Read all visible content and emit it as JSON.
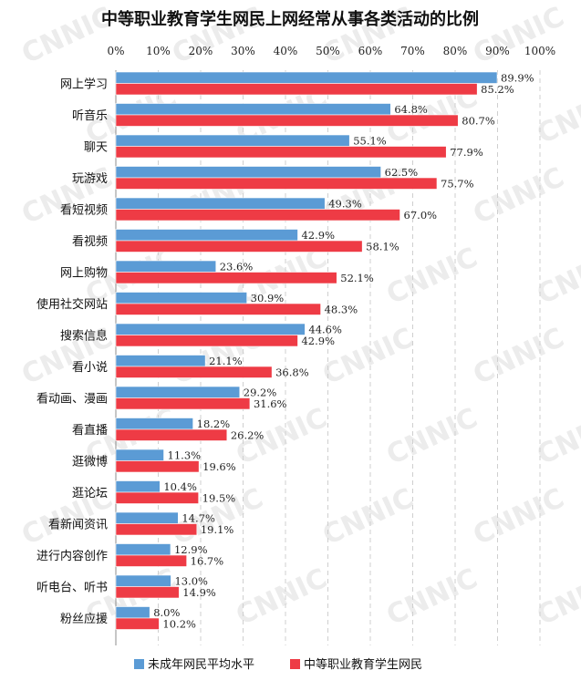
{
  "chart_data": {
    "type": "bar",
    "orientation": "horizontal",
    "title": "中等职业教育学生网民上网经常从事各类活动的比例",
    "xlim": [
      0,
      100
    ],
    "ticks": [
      "0%",
      "10%",
      "20%",
      "30%",
      "40%",
      "50%",
      "60%",
      "70%",
      "80%",
      "90%",
      "100%"
    ],
    "grid": true,
    "legend_position": "bottom",
    "watermark": "CNNIC",
    "categories": [
      "网上学习",
      "听音乐",
      "聊天",
      "玩游戏",
      "看短视频",
      "看视频",
      "网上购物",
      "使用社交网站",
      "搜索信息",
      "看小说",
      "看动画、漫画",
      "看直播",
      "逛微博",
      "逛论坛",
      "看新闻资讯",
      "进行内容创作",
      "听电台、听书",
      "粉丝应援"
    ],
    "series": [
      {
        "name": "未成年网民平均水平",
        "color": "#5b9bd5",
        "values": [
          89.9,
          64.8,
          55.1,
          62.5,
          49.3,
          42.9,
          23.6,
          30.9,
          44.6,
          21.1,
          29.2,
          18.2,
          11.3,
          10.4,
          14.7,
          12.9,
          13.0,
          8.0
        ],
        "labels": [
          "89.9%",
          "64.8%",
          "55.1%",
          "62.5%",
          "49.3%",
          "42.9%",
          "23.6%",
          "30.9%",
          "44.6%",
          "21.1%",
          "29.2%",
          "18.2%",
          "11.3%",
          "10.4%",
          "14.7%",
          "12.9%",
          "13.0%",
          "8.0%"
        ]
      },
      {
        "name": "中等职业教育学生网民",
        "color": "#ee3b45",
        "values": [
          85.2,
          80.7,
          77.9,
          75.7,
          67.0,
          58.1,
          52.1,
          48.3,
          42.9,
          36.8,
          31.6,
          26.2,
          19.6,
          19.5,
          19.1,
          16.7,
          14.9,
          10.2
        ],
        "labels": [
          "85.2%",
          "80.7%",
          "77.9%",
          "75.7%",
          "67.0%",
          "58.1%",
          "52.1%",
          "48.3%",
          "42.9%",
          "36.8%",
          "31.6%",
          "26.2%",
          "19.6%",
          "19.5%",
          "19.1%",
          "16.7%",
          "14.9%",
          "10.2%"
        ]
      }
    ]
  }
}
